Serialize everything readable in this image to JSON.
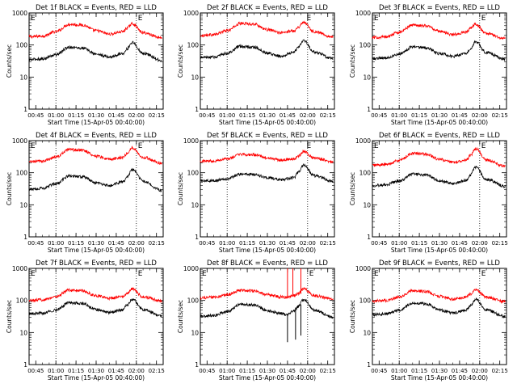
{
  "figure": {
    "background": "#ffffff",
    "colors": {
      "events": "#000000",
      "lld": "#ff0000",
      "axis": "#000000"
    }
  },
  "chart_data": [
    {
      "type": "line",
      "title": "Det 1f BLACK = Events, RED = LLD",
      "xlabel": "Start Time (15-Apr-05 00:40:00)",
      "ylabel": "Counts/sec",
      "x_ticks": [
        "00:45",
        "01:00",
        "01:15",
        "01:30",
        "01:45",
        "02:00",
        "02:15"
      ],
      "y_ticks": [
        "1",
        "10",
        "100",
        "1000"
      ],
      "y_scale": "log",
      "ylim": [
        1,
        1000
      ],
      "xlim": [
        "00:40",
        "02:20"
      ],
      "markers": {
        "lines": [
          "01:00",
          "02:00"
        ],
        "labels": [
          "E",
          "E"
        ],
        "label_times": [
          "00:40",
          "02:00"
        ]
      },
      "series": [
        {
          "times": [
            "00:40",
            "00:50",
            "01:00",
            "01:10",
            "01:20",
            "01:30",
            "01:40",
            "01:50",
            "01:53",
            "01:57",
            "02:05",
            "02:19"
          ],
          "values": [
            180,
            190,
            260,
            440,
            420,
            280,
            220,
            260,
            340,
            460,
            240,
            170
          ]
        },
        {
          "times": [
            "00:40",
            "00:50",
            "01:00",
            "01:10",
            "01:20",
            "01:30",
            "01:40",
            "01:50",
            "01:53",
            "01:57",
            "02:05",
            "02:19"
          ],
          "values": [
            35,
            37,
            50,
            85,
            80,
            52,
            42,
            55,
            75,
            120,
            55,
            33
          ]
        }
      ]
    },
    {
      "type": "line",
      "title": "Det 2f BLACK = Events, RED = LLD",
      "xlabel": "Start Time (15-Apr-05 00:40:00)",
      "ylabel": "Counts/sec",
      "x_ticks": [
        "00:45",
        "01:00",
        "01:15",
        "01:30",
        "01:45",
        "02:00",
        "02:15"
      ],
      "y_ticks": [
        "1",
        "10",
        "100",
        "1000"
      ],
      "y_scale": "log",
      "ylim": [
        1,
        1000
      ],
      "xlim": [
        "00:40",
        "02:20"
      ],
      "markers": {
        "lines": [
          "01:00",
          "02:00"
        ],
        "labels": [
          "E"
        ],
        "label_times": [
          "01:58"
        ]
      },
      "series": [
        {
          "times": [
            "00:40",
            "00:50",
            "01:00",
            "01:10",
            "01:20",
            "01:30",
            "01:40",
            "01:50",
            "01:53",
            "01:57",
            "02:05",
            "02:19"
          ],
          "values": [
            200,
            210,
            280,
            470,
            450,
            300,
            240,
            280,
            360,
            520,
            260,
            180
          ]
        },
        {
          "times": [
            "00:40",
            "00:50",
            "01:00",
            "01:10",
            "01:20",
            "01:30",
            "01:40",
            "01:50",
            "01:53",
            "01:57",
            "02:05",
            "02:19"
          ],
          "values": [
            40,
            42,
            55,
            90,
            85,
            55,
            45,
            60,
            85,
            140,
            60,
            38
          ]
        }
      ]
    },
    {
      "type": "line",
      "title": "Det 3f BLACK = Events, RED = LLD",
      "xlabel": "Start Time (15-Apr-05 00:40:00)",
      "ylabel": "Counts/sec",
      "x_ticks": [
        "00:45",
        "01:00",
        "01:15",
        "01:30",
        "01:45",
        "02:00",
        "02:15"
      ],
      "y_ticks": [
        "1",
        "10",
        "100",
        "1000"
      ],
      "y_scale": "log",
      "ylim": [
        1,
        1000
      ],
      "xlim": [
        "00:40",
        "02:20"
      ],
      "markers": {
        "lines": [
          "01:00",
          "02:00"
        ],
        "labels": [
          "E",
          "E"
        ],
        "label_times": [
          "00:40",
          "02:00"
        ]
      },
      "series": [
        {
          "times": [
            "00:40",
            "00:50",
            "01:00",
            "01:10",
            "01:20",
            "01:30",
            "01:40",
            "01:50",
            "01:53",
            "01:57",
            "02:05",
            "02:19"
          ],
          "values": [
            170,
            180,
            250,
            420,
            400,
            270,
            210,
            250,
            330,
            450,
            230,
            160
          ]
        },
        {
          "times": [
            "00:40",
            "00:50",
            "01:00",
            "01:10",
            "01:20",
            "01:30",
            "01:40",
            "01:50",
            "01:53",
            "01:57",
            "02:05",
            "02:19"
          ],
          "values": [
            38,
            40,
            52,
            88,
            82,
            54,
            44,
            56,
            78,
            125,
            58,
            35
          ]
        }
      ]
    },
    {
      "type": "line",
      "title": "Det 4f BLACK = Events, RED = LLD",
      "xlabel": "Start Time (15-Apr-05 00:40:00)",
      "ylabel": "Counts/sec",
      "x_ticks": [
        "00:45",
        "01:00",
        "01:15",
        "01:30",
        "01:45",
        "02:00",
        "02:15"
      ],
      "y_ticks": [
        "1",
        "10",
        "100",
        "1000"
      ],
      "y_scale": "log",
      "ylim": [
        1,
        1000
      ],
      "xlim": [
        "00:40",
        "02:20"
      ],
      "markers": {
        "lines": [
          "01:00",
          "02:00"
        ],
        "labels": [
          "E",
          "E"
        ],
        "label_times": [
          "00:40",
          "02:00"
        ]
      },
      "series": [
        {
          "times": [
            "00:40",
            "00:50",
            "01:00",
            "01:10",
            "01:20",
            "01:30",
            "01:40",
            "01:50",
            "01:53",
            "01:57",
            "02:05",
            "02:19"
          ],
          "values": [
            220,
            230,
            310,
            520,
            500,
            330,
            260,
            300,
            400,
            600,
            300,
            200
          ]
        },
        {
          "times": [
            "00:40",
            "00:50",
            "01:00",
            "01:10",
            "01:20",
            "01:30",
            "01:40",
            "01:50",
            "01:53",
            "01:57",
            "02:05",
            "02:19"
          ],
          "values": [
            30,
            33,
            45,
            80,
            75,
            48,
            40,
            52,
            72,
            125,
            55,
            28
          ]
        }
      ]
    },
    {
      "type": "line",
      "title": "Det 5f BLACK = Events, RED = LLD",
      "xlabel": "Start Time (15-Apr-05 00:40:00)",
      "ylabel": "Counts/sec",
      "x_ticks": [
        "00:45",
        "01:00",
        "01:15",
        "01:30",
        "01:45",
        "02:00",
        "02:15"
      ],
      "y_ticks": [
        "1",
        "10",
        "100",
        "1000"
      ],
      "y_scale": "log",
      "ylim": [
        1,
        1000
      ],
      "xlim": [
        "00:40",
        "02:20"
      ],
      "markers": {
        "lines": [
          "01:00",
          "02:00"
        ],
        "labels": [
          "E"
        ],
        "label_times": [
          "01:58"
        ]
      },
      "series": [
        {
          "times": [
            "00:40",
            "00:50",
            "01:00",
            "01:10",
            "01:20",
            "01:30",
            "01:40",
            "01:50",
            "01:53",
            "01:57",
            "02:05",
            "02:19"
          ],
          "values": [
            230,
            235,
            270,
            370,
            360,
            290,
            250,
            270,
            330,
            450,
            280,
            220
          ]
        },
        {
          "times": [
            "00:40",
            "00:50",
            "01:00",
            "01:10",
            "01:20",
            "01:30",
            "01:40",
            "01:50",
            "01:53",
            "01:57",
            "02:05",
            "02:19"
          ],
          "values": [
            55,
            57,
            65,
            90,
            88,
            70,
            60,
            70,
            105,
            170,
            80,
            55
          ]
        }
      ]
    },
    {
      "type": "line",
      "title": "Det 6f BLACK = Events, RED = LLD",
      "xlabel": "Start Time (15-Apr-05 00:40:00)",
      "ylabel": "Counts/sec",
      "x_ticks": [
        "00:45",
        "01:00",
        "01:15",
        "01:30",
        "01:45",
        "02:00",
        "02:15"
      ],
      "y_ticks": [
        "1",
        "10",
        "100",
        "1000"
      ],
      "y_scale": "log",
      "ylim": [
        1,
        1000
      ],
      "xlim": [
        "00:40",
        "02:20"
      ],
      "markers": {
        "lines": [
          "01:00",
          "02:00"
        ],
        "labels": [
          "E",
          "E"
        ],
        "label_times": [
          "00:40",
          "02:00"
        ]
      },
      "series": [
        {
          "times": [
            "00:40",
            "00:50",
            "01:00",
            "01:10",
            "01:20",
            "01:30",
            "01:40",
            "01:50",
            "01:53",
            "01:57",
            "02:05",
            "02:19"
          ],
          "values": [
            170,
            180,
            240,
            400,
            380,
            260,
            210,
            250,
            340,
            560,
            250,
            160
          ]
        },
        {
          "times": [
            "00:40",
            "00:50",
            "01:00",
            "01:10",
            "01:20",
            "01:30",
            "01:40",
            "01:50",
            "01:53",
            "01:57",
            "02:05",
            "02:19"
          ],
          "values": [
            40,
            42,
            55,
            90,
            85,
            56,
            46,
            58,
            85,
            150,
            62,
            38
          ]
        }
      ]
    },
    {
      "type": "line",
      "title": "Det 7f BLACK = Events, RED = LLD",
      "xlabel": "Start Time (15-Apr-05 00:40:00)",
      "ylabel": "Counts/sec",
      "x_ticks": [
        "00:45",
        "01:00",
        "01:15",
        "01:30",
        "01:45",
        "02:00",
        "02:15"
      ],
      "y_ticks": [
        "1",
        "10",
        "100",
        "1000"
      ],
      "y_scale": "log",
      "ylim": [
        1,
        1000
      ],
      "xlim": [
        "00:40",
        "02:20"
      ],
      "markers": {
        "lines": [
          "01:00",
          "02:00"
        ],
        "labels": [
          "E",
          "E"
        ],
        "label_times": [
          "00:40",
          "02:00"
        ]
      },
      "series": [
        {
          "times": [
            "00:40",
            "00:50",
            "01:00",
            "01:10",
            "01:20",
            "01:30",
            "01:40",
            "01:50",
            "01:53",
            "01:57",
            "02:05",
            "02:19"
          ],
          "values": [
            100,
            105,
            130,
            210,
            200,
            140,
            115,
            130,
            165,
            230,
            130,
            95
          ]
        },
        {
          "times": [
            "00:40",
            "00:50",
            "01:00",
            "01:10",
            "01:20",
            "01:30",
            "01:40",
            "01:50",
            "01:53",
            "01:57",
            "02:05",
            "02:19"
          ],
          "values": [
            38,
            40,
            50,
            85,
            80,
            52,
            42,
            52,
            70,
            110,
            52,
            33
          ]
        }
      ]
    },
    {
      "type": "line",
      "title": "Det 8f BLACK = Events, RED = LLD",
      "xlabel": "Start Time (15-Apr-05 00:40:00)",
      "ylabel": "Counts/sec",
      "x_ticks": [
        "00:45",
        "01:00",
        "01:15",
        "01:30",
        "01:45",
        "02:00",
        "02:15"
      ],
      "y_ticks": [
        "1",
        "10",
        "100",
        "1000"
      ],
      "y_scale": "log",
      "ylim": [
        1,
        1000
      ],
      "xlim": [
        "00:40",
        "02:20"
      ],
      "markers": {
        "lines": [
          "01:00",
          "02:00"
        ],
        "labels": [
          "E",
          "E"
        ],
        "label_times": [
          "00:40",
          "02:00"
        ]
      },
      "series": [
        {
          "times": [
            "00:40",
            "00:50",
            "01:00",
            "01:10",
            "01:20",
            "01:30",
            "01:40",
            "01:44",
            "01:50",
            "01:53",
            "01:57",
            "02:05",
            "02:19"
          ],
          "values": [
            120,
            125,
            150,
            210,
            200,
            150,
            130,
            125,
            140,
            165,
            230,
            140,
            110
          ]
        },
        {
          "times": [
            "00:40",
            "00:50",
            "01:00",
            "01:10",
            "01:20",
            "01:30",
            "01:40",
            "01:44",
            "01:50",
            "01:53",
            "01:57",
            "02:05",
            "02:19"
          ],
          "values": [
            32,
            34,
            45,
            75,
            72,
            48,
            40,
            36,
            48,
            65,
            105,
            50,
            30
          ]
        }
      ],
      "spikes": [
        {
          "series": 0,
          "time": "01:45",
          "from": 120,
          "to": 1000
        },
        {
          "series": 0,
          "time": "01:49",
          "from": 130,
          "to": 1000
        },
        {
          "series": 0,
          "time": "01:55",
          "from": 160,
          "to": 1000
        },
        {
          "series": 1,
          "time": "01:45",
          "from": 36,
          "to": 5
        },
        {
          "series": 1,
          "time": "01:51",
          "from": 60,
          "to": 6
        },
        {
          "series": 1,
          "time": "01:55",
          "from": 75,
          "to": 8
        }
      ]
    },
    {
      "type": "line",
      "title": "Det 9f BLACK = Events, RED = LLD",
      "xlabel": "Start Time (15-Apr-05 00:40:00)",
      "ylabel": "Counts/sec",
      "x_ticks": [
        "00:45",
        "01:00",
        "01:15",
        "01:30",
        "01:45",
        "02:00",
        "02:15"
      ],
      "y_ticks": [
        "1",
        "10",
        "100",
        "1000"
      ],
      "y_scale": "log",
      "ylim": [
        1,
        1000
      ],
      "xlim": [
        "00:40",
        "02:20"
      ],
      "markers": {
        "lines": [
          "01:00",
          "02:00"
        ],
        "labels": [
          "E",
          "E"
        ],
        "label_times": [
          "00:40",
          "02:00"
        ]
      },
      "series": [
        {
          "times": [
            "00:40",
            "00:50",
            "01:00",
            "01:10",
            "01:20",
            "01:30",
            "01:40",
            "01:50",
            "01:53",
            "01:57",
            "02:05",
            "02:19"
          ],
          "values": [
            95,
            100,
            125,
            200,
            190,
            135,
            110,
            125,
            160,
            220,
            125,
            90
          ]
        },
        {
          "times": [
            "00:40",
            "00:50",
            "01:00",
            "01:10",
            "01:20",
            "01:30",
            "01:40",
            "01:50",
            "01:53",
            "01:57",
            "02:05",
            "02:19"
          ],
          "values": [
            36,
            38,
            48,
            82,
            78,
            50,
            40,
            50,
            68,
            108,
            50,
            32
          ]
        }
      ]
    }
  ]
}
